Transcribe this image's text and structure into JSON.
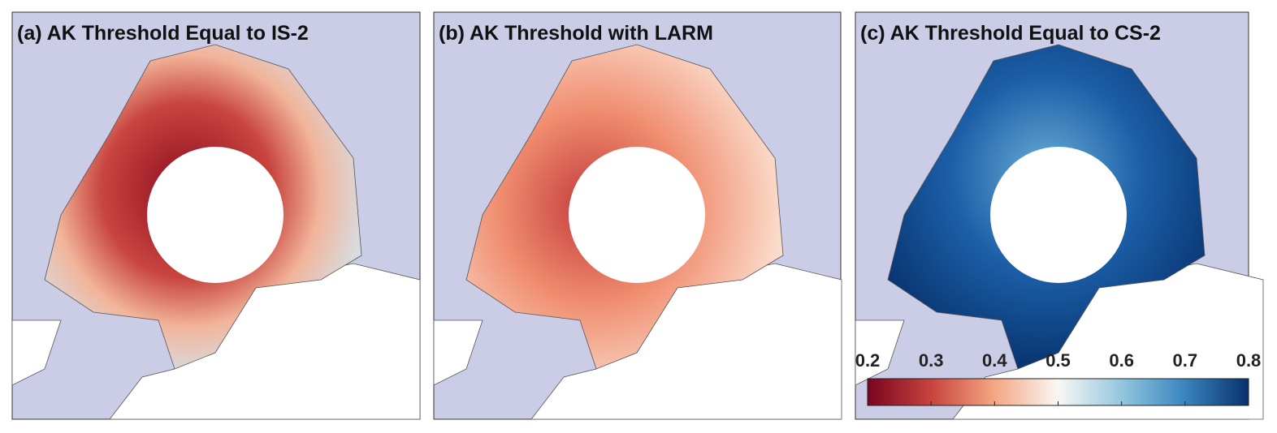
{
  "panels": [
    {
      "title": "(a) AK Threshold Equal to IS-2"
    },
    {
      "title": "(b) AK Threshold with LARM"
    },
    {
      "title": "(c) AK Threshold Equal to CS-2"
    }
  ],
  "colorbar": {
    "lim": [
      0.2,
      0.8
    ],
    "ticks": [
      0.2,
      0.3,
      0.4,
      0.5,
      0.6,
      0.7,
      0.8
    ]
  }
}
